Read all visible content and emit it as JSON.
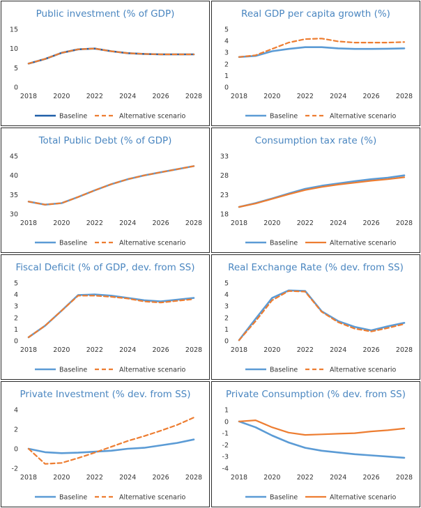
{
  "legend": {
    "baseline": "Baseline",
    "alternative": "Alternative scenario"
  },
  "chart_data": [
    {
      "type": "line",
      "title": "Public investment (% of GDP)",
      "x": [
        2018,
        2019,
        2020,
        2021,
        2022,
        2023,
        2024,
        2025,
        2026,
        2027,
        2028
      ],
      "xticks": [
        2018,
        2020,
        2022,
        2024,
        2026,
        2028
      ],
      "ylim": [
        0,
        15
      ],
      "yticks": [
        0,
        5,
        10,
        15
      ],
      "series": [
        {
          "name": "Baseline",
          "color": "#1f5fa8",
          "dash": false,
          "values": [
            6.1,
            7.3,
            8.9,
            9.8,
            10.0,
            9.3,
            8.8,
            8.6,
            8.5,
            8.5,
            8.5
          ]
        },
        {
          "name": "Alternative scenario",
          "color": "#ed7d31",
          "dash": true,
          "values": [
            6.1,
            7.3,
            8.9,
            9.8,
            10.0,
            9.3,
            8.8,
            8.6,
            8.5,
            8.5,
            8.5
          ]
        }
      ]
    },
    {
      "type": "line",
      "title": "Real GDP per capita growth (%)",
      "x": [
        2018,
        2019,
        2020,
        2021,
        2022,
        2023,
        2024,
        2025,
        2026,
        2027,
        2028
      ],
      "xticks": [
        2018,
        2020,
        2022,
        2024,
        2026,
        2028
      ],
      "ylim": [
        0,
        5
      ],
      "yticks": [
        0,
        1,
        2,
        3,
        4,
        5
      ],
      "series": [
        {
          "name": "Baseline",
          "color": "#5b9bd5",
          "dash": false,
          "values": [
            2.6,
            2.7,
            3.1,
            3.3,
            3.45,
            3.45,
            3.35,
            3.3,
            3.3,
            3.32,
            3.35
          ]
        },
        {
          "name": "Alternative scenario",
          "color": "#ed7d31",
          "dash": true,
          "values": [
            2.6,
            2.75,
            3.3,
            3.85,
            4.15,
            4.2,
            3.95,
            3.85,
            3.85,
            3.85,
            3.9
          ]
        }
      ]
    },
    {
      "type": "line",
      "title": "Total Public Debt (% of GDP)",
      "x": [
        2018,
        2019,
        2020,
        2021,
        2022,
        2023,
        2024,
        2025,
        2026,
        2027,
        2028
      ],
      "xticks": [
        2018,
        2020,
        2022,
        2024,
        2026,
        2028
      ],
      "ylim": [
        30,
        45
      ],
      "yticks": [
        30,
        35,
        40,
        45
      ],
      "series": [
        {
          "name": "Baseline",
          "color": "#5b9bd5",
          "dash": false,
          "values": [
            33.2,
            32.4,
            32.8,
            34.4,
            36.1,
            37.7,
            39.0,
            40.0,
            40.8,
            41.6,
            42.4
          ]
        },
        {
          "name": "Alternative scenario",
          "color": "#ed7d31",
          "dash": true,
          "values": [
            33.2,
            32.4,
            32.8,
            34.4,
            36.1,
            37.7,
            39.0,
            40.0,
            40.8,
            41.6,
            42.4
          ]
        }
      ]
    },
    {
      "type": "line",
      "title": "Consumption tax rate (%)",
      "x": [
        2018,
        2019,
        2020,
        2021,
        2022,
        2023,
        2024,
        2025,
        2026,
        2027,
        2028
      ],
      "xticks": [
        2018,
        2020,
        2022,
        2024,
        2026,
        2028
      ],
      "ylim": [
        18,
        33
      ],
      "yticks": [
        18,
        23,
        28,
        33
      ],
      "series": [
        {
          "name": "Baseline",
          "color": "#5b9bd5",
          "dash": false,
          "values": [
            19.8,
            20.8,
            22.0,
            23.3,
            24.5,
            25.3,
            25.9,
            26.5,
            27.0,
            27.4,
            28.0
          ]
        },
        {
          "name": "Alternative scenario",
          "color": "#ed7d31",
          "dash": false,
          "values": [
            19.8,
            20.7,
            21.9,
            23.1,
            24.2,
            25.0,
            25.6,
            26.1,
            26.6,
            27.0,
            27.5
          ]
        }
      ]
    },
    {
      "type": "line",
      "title": "Fiscal Deficit (% of GDP, dev. from SS)",
      "x": [
        2018,
        2019,
        2020,
        2021,
        2022,
        2023,
        2024,
        2025,
        2026,
        2027,
        2028
      ],
      "xticks": [
        2018,
        2020,
        2022,
        2024,
        2026,
        2028
      ],
      "ylim": [
        0,
        5
      ],
      "yticks": [
        0,
        1,
        2,
        3,
        4,
        5
      ],
      "series": [
        {
          "name": "Baseline",
          "color": "#5b9bd5",
          "dash": false,
          "values": [
            0.3,
            1.3,
            2.6,
            3.95,
            4.0,
            3.9,
            3.7,
            3.5,
            3.4,
            3.55,
            3.7
          ]
        },
        {
          "name": "Alternative scenario",
          "color": "#ed7d31",
          "dash": true,
          "values": [
            0.3,
            1.3,
            2.6,
            3.9,
            3.9,
            3.8,
            3.65,
            3.4,
            3.3,
            3.45,
            3.6
          ]
        }
      ]
    },
    {
      "type": "line",
      "title": "Real Exchange Rate (% dev. from SS)",
      "x": [
        2018,
        2019,
        2020,
        2021,
        2022,
        2023,
        2024,
        2025,
        2026,
        2027,
        2028
      ],
      "xticks": [
        2018,
        2020,
        2022,
        2024,
        2026,
        2028
      ],
      "ylim": [
        0,
        5
      ],
      "yticks": [
        0,
        1,
        2,
        3,
        4,
        5
      ],
      "series": [
        {
          "name": "Baseline",
          "color": "#5b9bd5",
          "dash": false,
          "values": [
            0.05,
            1.9,
            3.7,
            4.35,
            4.3,
            2.55,
            1.7,
            1.2,
            0.9,
            1.25,
            1.55
          ]
        },
        {
          "name": "Alternative scenario",
          "color": "#ed7d31",
          "dash": true,
          "values": [
            0.05,
            1.7,
            3.5,
            4.3,
            4.25,
            2.5,
            1.6,
            1.05,
            0.8,
            1.1,
            1.45
          ]
        }
      ]
    },
    {
      "type": "line",
      "title": "Private Investment (% dev. from SS)",
      "x": [
        2018,
        2019,
        2020,
        2021,
        2022,
        2023,
        2024,
        2025,
        2026,
        2027,
        2028
      ],
      "xticks": [
        2018,
        2020,
        2022,
        2024,
        2026,
        2028
      ],
      "ylim": [
        -2,
        4
      ],
      "yticks": [
        -2,
        0,
        2,
        4
      ],
      "series": [
        {
          "name": "Baseline",
          "color": "#5b9bd5",
          "dash": false,
          "values": [
            0.0,
            -0.35,
            -0.45,
            -0.4,
            -0.3,
            -0.2,
            0.0,
            0.1,
            0.35,
            0.6,
            0.95
          ]
        },
        {
          "name": "Alternative scenario",
          "color": "#ed7d31",
          "dash": true,
          "values": [
            0.0,
            -1.55,
            -1.45,
            -0.95,
            -0.4,
            0.2,
            0.8,
            1.3,
            1.85,
            2.45,
            3.2
          ]
        }
      ]
    },
    {
      "type": "line",
      "title": "Private Consumption (% dev. from SS)",
      "x": [
        2018,
        2019,
        2020,
        2021,
        2022,
        2023,
        2024,
        2025,
        2026,
        2027,
        2028
      ],
      "xticks": [
        2018,
        2020,
        2022,
        2024,
        2026,
        2028
      ],
      "ylim": [
        -4,
        1
      ],
      "yticks": [
        -4,
        -3,
        -2,
        -1,
        0,
        1
      ],
      "series": [
        {
          "name": "Baseline",
          "color": "#5b9bd5",
          "dash": false,
          "values": [
            0.0,
            -0.5,
            -1.2,
            -1.8,
            -2.25,
            -2.5,
            -2.65,
            -2.8,
            -2.9,
            -3.0,
            -3.1
          ]
        },
        {
          "name": "Alternative scenario",
          "color": "#ed7d31",
          "dash": false,
          "values": [
            0.0,
            0.1,
            -0.5,
            -0.95,
            -1.15,
            -1.1,
            -1.05,
            -1.0,
            -0.85,
            -0.75,
            -0.6
          ]
        }
      ]
    }
  ]
}
